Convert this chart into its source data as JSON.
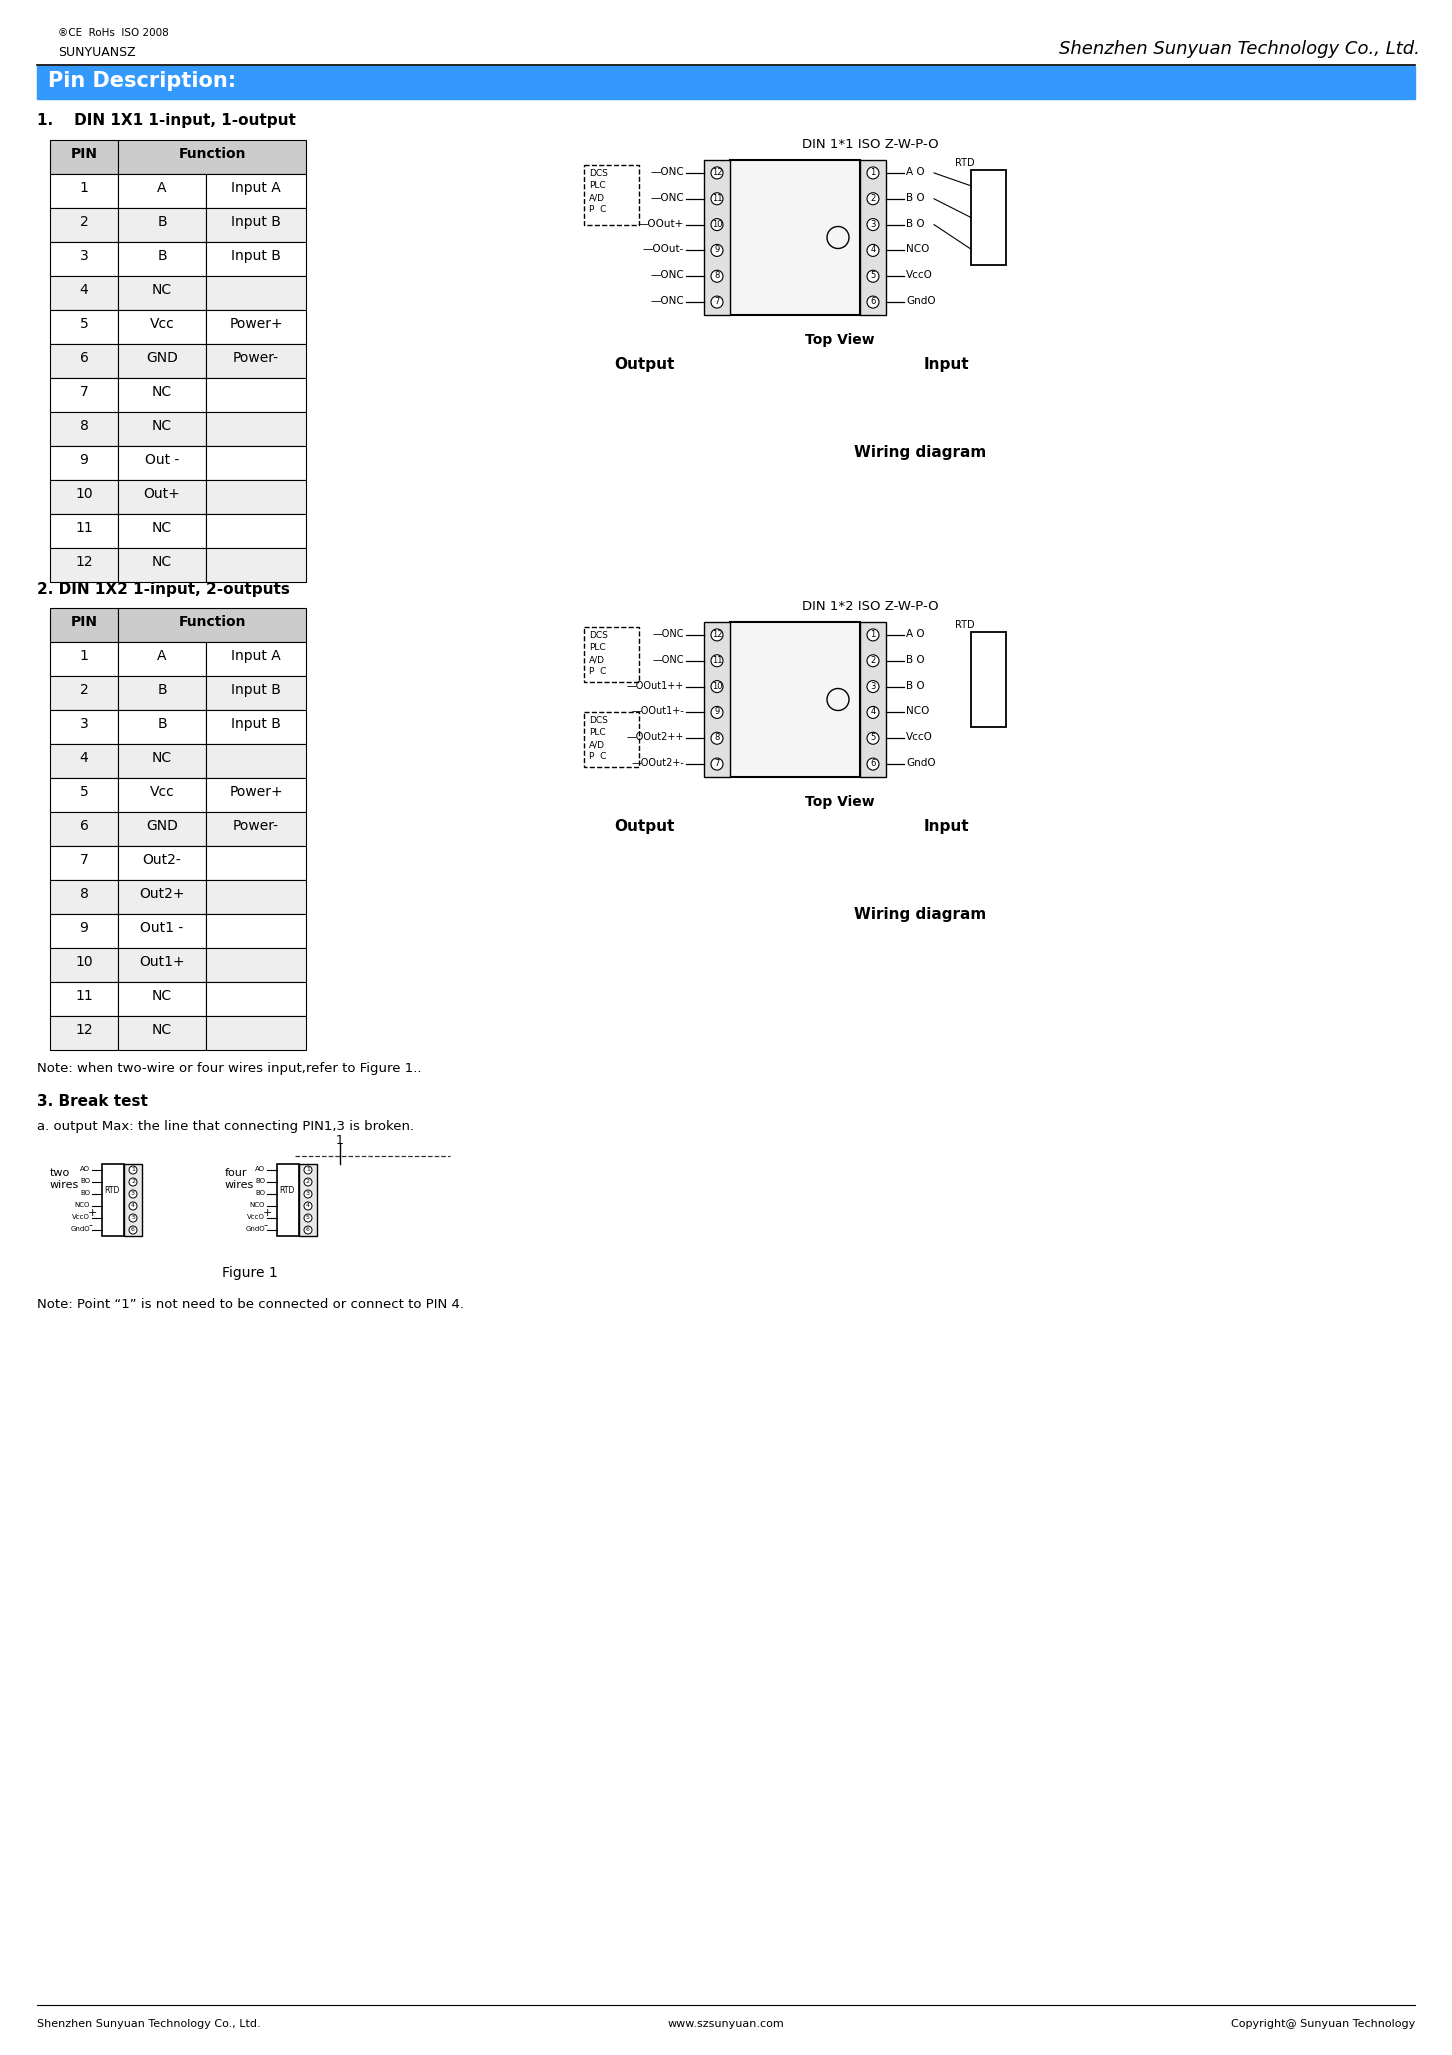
{
  "page_bg": "#ffffff",
  "header_bg": "#3399ff",
  "header_text": "Pin Description:",
  "header_text_color": "#ffffff",
  "company_name": "Shenzhen Sunyuan Technology Co., Ltd.",
  "logo_text": "SUNYUANSZ",
  "cert_text": "®CE  RoHs  ISO 2008",
  "section1_title": "1.    DIN 1X1 1-input, 1-output",
  "section2_title": "2. DIN 1X2 1-input, 2-outputs",
  "section3_title": "3. Break test",
  "section3a": "a. output Max: the line that connecting PIN1,3 is broken.",
  "table1_rows": [
    [
      "1",
      "A",
      "Input A"
    ],
    [
      "2",
      "B",
      "Input B"
    ],
    [
      "3",
      "B",
      "Input B"
    ],
    [
      "4",
      "NC",
      ""
    ],
    [
      "5",
      "Vcc",
      "Power+"
    ],
    [
      "6",
      "GND",
      "Power-"
    ],
    [
      "7",
      "NC",
      ""
    ],
    [
      "8",
      "NC",
      ""
    ],
    [
      "9",
      "Out -",
      ""
    ],
    [
      "10",
      "Out+",
      ""
    ],
    [
      "11",
      "NC",
      ""
    ],
    [
      "12",
      "NC",
      ""
    ]
  ],
  "table2_rows": [
    [
      "1",
      "A",
      "Input A"
    ],
    [
      "2",
      "B",
      "Input B"
    ],
    [
      "3",
      "B",
      "Input B"
    ],
    [
      "4",
      "NC",
      ""
    ],
    [
      "5",
      "Vcc",
      "Power+"
    ],
    [
      "6",
      "GND",
      "Power-"
    ],
    [
      "7",
      "Out2-",
      ""
    ],
    [
      "8",
      "Out2+",
      ""
    ],
    [
      "9",
      "Out1 -",
      ""
    ],
    [
      "10",
      "Out1+",
      ""
    ],
    [
      "11",
      "NC",
      ""
    ],
    [
      "12",
      "NC",
      ""
    ]
  ],
  "wiring_diagram_label": "Wiring diagram",
  "diagram1_title": "DIN 1*1 ISO Z-W-P-O",
  "diagram2_title": "DIN 1*2 ISO Z-W-P-O",
  "top_view_label": "Top View",
  "input_label": "Input",
  "output_label": "Output",
  "figure1_label": "Figure 1",
  "note1": "Note: when two-wire or four wires input,refer to Figure 1..",
  "note2": "Note: Point “1” is not need to be connected or connect to PIN 4.",
  "footer_left": "Shenzhen Sunyuan Technology Co., Ltd.",
  "footer_center": "www.szsunyuan.com",
  "footer_right": "Copyright@ Sunyuan Technology",
  "table_header_bg": "#cccccc",
  "table_row_bg1": "#ffffff",
  "table_row_bg2": "#eeeeee",
  "table_border_color": "#000000"
}
